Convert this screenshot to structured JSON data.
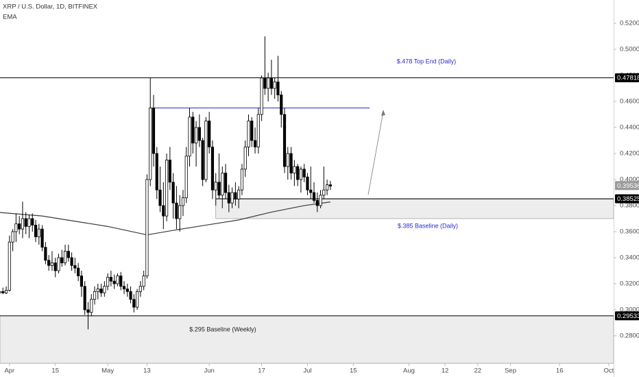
{
  "chart_data": {
    "type": "candlestick",
    "title": "XRP / U.S. Dollar, 1D, BITFINEX",
    "indicator": "EMA",
    "xlim": [
      -2.9,
      184.5
    ],
    "ylim": [
      0.2589,
      0.5379
    ],
    "xticks": [
      {
        "value": 0,
        "label": "Apr"
      },
      {
        "value": 14,
        "label": "15"
      },
      {
        "value": 30,
        "label": "May"
      },
      {
        "value": 42,
        "label": "13"
      },
      {
        "value": 61,
        "label": "Jun"
      },
      {
        "value": 77,
        "label": "17"
      },
      {
        "value": 91,
        "label": "Jul"
      },
      {
        "value": 105,
        "label": "15"
      },
      {
        "value": 122,
        "label": "Aug"
      },
      {
        "value": 133,
        "label": "12"
      },
      {
        "value": 143,
        "label": "22"
      },
      {
        "value": 153,
        "label": "Sep"
      },
      {
        "value": 168,
        "label": "16"
      },
      {
        "value": 183,
        "label": "Oct"
      }
    ],
    "yticks": [
      {
        "value": 0.28,
        "label": "0.28000"
      },
      {
        "value": 0.3,
        "label": "0.30000"
      },
      {
        "value": 0.32,
        "label": "0.32000"
      },
      {
        "value": 0.34,
        "label": "0.34000"
      },
      {
        "value": 0.36,
        "label": "0.36000"
      },
      {
        "value": 0.38,
        "label": "0.38000"
      },
      {
        "value": 0.4,
        "label": "0.40000"
      },
      {
        "value": 0.42,
        "label": "0.42000"
      },
      {
        "value": 0.44,
        "label": "0.44000"
      },
      {
        "value": 0.46,
        "label": "0.46000"
      },
      {
        "value": 0.48,
        "label": "0.48000"
      },
      {
        "value": 0.5,
        "label": "0.50000"
      },
      {
        "value": 0.52,
        "label": "0.52000"
      }
    ],
    "up_color": "#ffffff",
    "down_color": "#000000",
    "candles": {
      "x": [
        -3,
        -2,
        -1,
        0,
        1,
        2,
        3,
        4,
        5,
        6,
        7,
        8,
        9,
        10,
        11,
        12,
        13,
        14,
        15,
        16,
        17,
        18,
        19,
        20,
        21,
        22,
        23,
        24,
        25,
        26,
        27,
        28,
        29,
        30,
        31,
        32,
        33,
        34,
        35,
        36,
        37,
        38,
        39,
        40,
        41,
        42,
        43,
        44,
        45,
        46,
        47,
        48,
        49,
        50,
        51,
        52,
        53,
        54,
        55,
        56,
        57,
        58,
        59,
        60,
        61,
        62,
        63,
        64,
        65,
        66,
        67,
        68,
        69,
        70,
        71,
        72,
        73,
        74,
        75,
        76,
        77,
        78,
        79,
        80,
        81,
        82,
        83,
        84,
        85,
        86,
        87,
        88,
        89,
        90,
        91,
        92,
        93,
        94,
        95,
        96,
        97,
        98
      ],
      "ohlc": [
        [
          0.313,
          0.316,
          0.311,
          0.314
        ],
        [
          0.314,
          0.317,
          0.312,
          0.313
        ],
        [
          0.313,
          0.318,
          0.312,
          0.315
        ],
        [
          0.315,
          0.357,
          0.314,
          0.352
        ],
        [
          0.352,
          0.362,
          0.345,
          0.36
        ],
        [
          0.36,
          0.374,
          0.352,
          0.366
        ],
        [
          0.366,
          0.372,
          0.358,
          0.362
        ],
        [
          0.362,
          0.383,
          0.355,
          0.37
        ],
        [
          0.37,
          0.375,
          0.358,
          0.364
        ],
        [
          0.364,
          0.373,
          0.355,
          0.37
        ],
        [
          0.37,
          0.374,
          0.36,
          0.365
        ],
        [
          0.365,
          0.369,
          0.352,
          0.356
        ],
        [
          0.356,
          0.366,
          0.35,
          0.362
        ],
        [
          0.362,
          0.365,
          0.345,
          0.348
        ],
        [
          0.348,
          0.352,
          0.335,
          0.338
        ],
        [
          0.338,
          0.342,
          0.33,
          0.334
        ],
        [
          0.334,
          0.345,
          0.33,
          0.336
        ],
        [
          0.336,
          0.34,
          0.325,
          0.33
        ],
        [
          0.33,
          0.343,
          0.328,
          0.34
        ],
        [
          0.34,
          0.346,
          0.333,
          0.336
        ],
        [
          0.336,
          0.35,
          0.334,
          0.345
        ],
        [
          0.345,
          0.35,
          0.337,
          0.34
        ],
        [
          0.34,
          0.344,
          0.33,
          0.334
        ],
        [
          0.334,
          0.34,
          0.328,
          0.332
        ],
        [
          0.332,
          0.336,
          0.322,
          0.326
        ],
        [
          0.326,
          0.33,
          0.31,
          0.318
        ],
        [
          0.318,
          0.322,
          0.296,
          0.3
        ],
        [
          0.3,
          0.306,
          0.285,
          0.298
        ],
        [
          0.298,
          0.312,
          0.295,
          0.308
        ],
        [
          0.308,
          0.318,
          0.304,
          0.314
        ],
        [
          0.314,
          0.32,
          0.308,
          0.316
        ],
        [
          0.316,
          0.32,
          0.31,
          0.313
        ],
        [
          0.313,
          0.322,
          0.31,
          0.318
        ],
        [
          0.318,
          0.328,
          0.315,
          0.325
        ],
        [
          0.325,
          0.33,
          0.318,
          0.322
        ],
        [
          0.322,
          0.327,
          0.316,
          0.32
        ],
        [
          0.32,
          0.328,
          0.318,
          0.326
        ],
        [
          0.326,
          0.329,
          0.315,
          0.318
        ],
        [
          0.318,
          0.322,
          0.312,
          0.316
        ],
        [
          0.316,
          0.32,
          0.31,
          0.314
        ],
        [
          0.314,
          0.318,
          0.305,
          0.308
        ],
        [
          0.308,
          0.312,
          0.298,
          0.302
        ],
        [
          0.302,
          0.316,
          0.3,
          0.314
        ],
        [
          0.314,
          0.322,
          0.31,
          0.318
        ],
        [
          0.318,
          0.33,
          0.315,
          0.326
        ],
        [
          0.326,
          0.404,
          0.324,
          0.4
        ],
        [
          0.4,
          0.478,
          0.395,
          0.455
        ],
        [
          0.455,
          0.465,
          0.41,
          0.42
        ],
        [
          0.42,
          0.425,
          0.385,
          0.392
        ],
        [
          0.392,
          0.41,
          0.375,
          0.38
        ],
        [
          0.38,
          0.398,
          0.362,
          0.372
        ],
        [
          0.372,
          0.42,
          0.368,
          0.415
        ],
        [
          0.415,
          0.425,
          0.392,
          0.398
        ],
        [
          0.398,
          0.405,
          0.37,
          0.382
        ],
        [
          0.382,
          0.395,
          0.362,
          0.37
        ],
        [
          0.37,
          0.388,
          0.36,
          0.38
        ],
        [
          0.38,
          0.392,
          0.372,
          0.386
        ],
        [
          0.386,
          0.425,
          0.382,
          0.418
        ],
        [
          0.418,
          0.455,
          0.41,
          0.448
        ],
        [
          0.448,
          0.452,
          0.42,
          0.428
        ],
        [
          0.428,
          0.445,
          0.41,
          0.44
        ],
        [
          0.44,
          0.45,
          0.425,
          0.43
        ],
        [
          0.43,
          0.432,
          0.395,
          0.4
        ],
        [
          0.4,
          0.448,
          0.398,
          0.445
        ],
        [
          0.445,
          0.452,
          0.42,
          0.425
        ],
        [
          0.425,
          0.43,
          0.385,
          0.392
        ],
        [
          0.392,
          0.405,
          0.38,
          0.398
        ],
        [
          0.398,
          0.42,
          0.385,
          0.388
        ],
        [
          0.388,
          0.41,
          0.378,
          0.405
        ],
        [
          0.405,
          0.412,
          0.385,
          0.39
        ],
        [
          0.39,
          0.396,
          0.375,
          0.382
        ],
        [
          0.382,
          0.394,
          0.378,
          0.39
        ],
        [
          0.39,
          0.398,
          0.38,
          0.385
        ],
        [
          0.385,
          0.395,
          0.378,
          0.392
        ],
        [
          0.392,
          0.412,
          0.388,
          0.408
        ],
        [
          0.408,
          0.43,
          0.402,
          0.425
        ],
        [
          0.425,
          0.45,
          0.418,
          0.445
        ],
        [
          0.445,
          0.448,
          0.425,
          0.43
        ],
        [
          0.43,
          0.44,
          0.42,
          0.425
        ],
        [
          0.425,
          0.455,
          0.42,
          0.45
        ],
        [
          0.45,
          0.48,
          0.445,
          0.478
        ],
        [
          0.478,
          0.51,
          0.465,
          0.47
        ],
        [
          0.47,
          0.482,
          0.46,
          0.478
        ],
        [
          0.478,
          0.492,
          0.465,
          0.47
        ],
        [
          0.47,
          0.478,
          0.462,
          0.475
        ],
        [
          0.475,
          0.495,
          0.46,
          0.465
        ],
        [
          0.465,
          0.468,
          0.44,
          0.45
        ],
        [
          0.45,
          0.455,
          0.405,
          0.41
        ],
        [
          0.41,
          0.425,
          0.4,
          0.42
        ],
        [
          0.42,
          0.425,
          0.4,
          0.405
        ],
        [
          0.405,
          0.415,
          0.395,
          0.41
        ],
        [
          0.41,
          0.412,
          0.395,
          0.4
        ],
        [
          0.4,
          0.41,
          0.39,
          0.408
        ],
        [
          0.408,
          0.412,
          0.398,
          0.402
        ],
        [
          0.402,
          0.405,
          0.388,
          0.392
        ],
        [
          0.392,
          0.41,
          0.385,
          0.39
        ],
        [
          0.39,
          0.398,
          0.382,
          0.384
        ],
        [
          0.384,
          0.39,
          0.375,
          0.38
        ],
        [
          0.38,
          0.392,
          0.378,
          0.388
        ],
        [
          0.388,
          0.41,
          0.385,
          0.392
        ],
        [
          0.392,
          0.4,
          0.388,
          0.396
        ],
        [
          0.396,
          0.399,
          0.392,
          0.395
        ]
      ]
    },
    "ema": {
      "color": "#3a3a3a",
      "x": [
        -2.9,
        10,
        20,
        30,
        42,
        50,
        60,
        70,
        80,
        90,
        98
      ],
      "values": [
        0.3747,
        0.372,
        0.368,
        0.364,
        0.3575,
        0.361,
        0.365,
        0.369,
        0.375,
        0.38,
        0.3828
      ]
    },
    "levels": [
      {
        "value": 0.47818,
        "from": -2.9,
        "to": 184.5,
        "color": "#000000"
      },
      {
        "value": 0.455,
        "from": 43,
        "to": 110,
        "color": "#2a2ad0"
      },
      {
        "value": 0.38525,
        "from": 63,
        "to": 184.5,
        "color": "#000000"
      },
      {
        "value": 0.29533,
        "from": -2.9,
        "to": 184.5,
        "color": "#000000"
      }
    ],
    "zones": [
      {
        "low": 0.37,
        "high": 0.385,
        "from": 63,
        "to": 184.5
      },
      {
        "low": 0.2589,
        "high": 0.29533,
        "from": -2.9,
        "to": 184.5
      }
    ],
    "price_labels": [
      {
        "value": 0.47818,
        "color": "#000000"
      },
      {
        "value": 0.39536,
        "color": "#9a9a9a"
      },
      {
        "value": 0.38525,
        "color": "#000000"
      },
      {
        "value": 0.29533,
        "color": "#000000"
      }
    ],
    "annotations": [
      "$.478 Top End (Daily)",
      "$.385 Baseline (Daily)",
      "$.295 Baseline (Weekly)"
    ]
  }
}
